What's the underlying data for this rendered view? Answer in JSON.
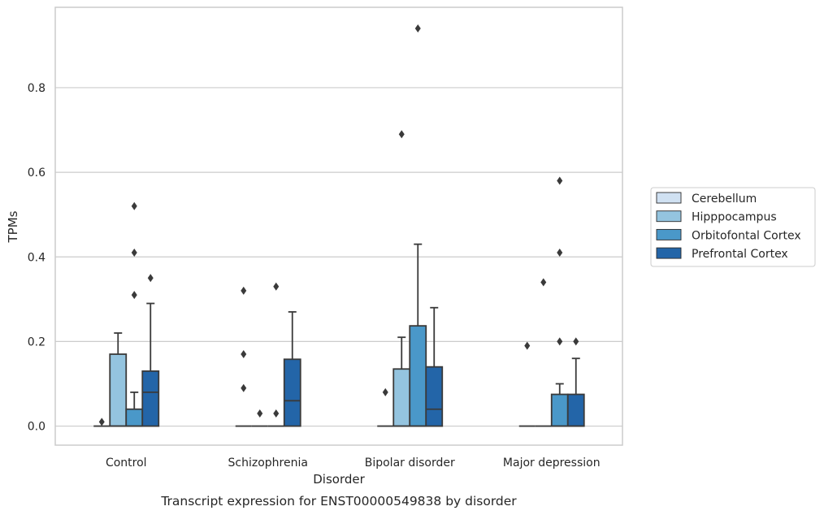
{
  "chart_data": {
    "type": "box",
    "caption": "Transcript expression for ENST00000549838 by disorder",
    "xlabel": "Disorder",
    "ylabel": "TPMs",
    "ylim": [
      -0.045,
      0.99
    ],
    "yticks": [
      0.0,
      0.2,
      0.4,
      0.6,
      0.8
    ],
    "ytick_labels": [
      "0.0",
      "0.2",
      "0.4",
      "0.6",
      "0.8"
    ],
    "grid": "horizontal",
    "legend_position": "right",
    "categories": [
      "Control",
      "Schizophrenia",
      "Bipolar disorder",
      "Major depression"
    ],
    "series": [
      {
        "name": "Cerebellum",
        "color": "#d0e1f2",
        "boxes": [
          {
            "q1": 0,
            "median": 0,
            "q3": 0,
            "whislo": 0,
            "whishi": 0,
            "fliers": [
              0.01
            ]
          },
          {
            "q1": 0,
            "median": 0,
            "q3": 0,
            "whislo": 0,
            "whishi": 0,
            "fliers": [
              0.32,
              0.17,
              0.09
            ]
          },
          {
            "q1": 0,
            "median": 0,
            "q3": 0,
            "whislo": 0,
            "whishi": 0,
            "fliers": [
              0.08
            ]
          },
          {
            "q1": 0,
            "median": 0,
            "q3": 0,
            "whislo": 0,
            "whishi": 0,
            "fliers": [
              0.19
            ]
          }
        ]
      },
      {
        "name": "Hipppocampus",
        "color": "#94c4df",
        "boxes": [
          {
            "q1": 0,
            "median": 0,
            "q3": 0.17,
            "whislo": 0,
            "whishi": 0.22,
            "fliers": []
          },
          {
            "q1": 0,
            "median": 0,
            "q3": 0,
            "whislo": 0,
            "whishi": 0,
            "fliers": [
              0.03
            ]
          },
          {
            "q1": 0,
            "median": 0,
            "q3": 0.135,
            "whislo": 0,
            "whishi": 0.21,
            "fliers": [
              0.69
            ]
          },
          {
            "q1": 0,
            "median": 0,
            "q3": 0,
            "whislo": 0,
            "whishi": 0,
            "fliers": [
              0.34
            ]
          }
        ]
      },
      {
        "name": "Orbitofontal Cortex",
        "color": "#4a98c9",
        "boxes": [
          {
            "q1": 0,
            "median": 0,
            "q3": 0.04,
            "whislo": 0,
            "whishi": 0.08,
            "fliers": [
              0.52,
              0.41,
              0.31
            ]
          },
          {
            "q1": 0,
            "median": 0,
            "q3": 0,
            "whislo": 0,
            "whishi": 0,
            "fliers": [
              0.33,
              0.03
            ]
          },
          {
            "q1": 0,
            "median": 0,
            "q3": 0.237,
            "whislo": 0,
            "whishi": 0.43,
            "fliers": [
              0.94
            ]
          },
          {
            "q1": 0,
            "median": 0,
            "q3": 0.075,
            "whislo": 0,
            "whishi": 0.1,
            "fliers": [
              0.58,
              0.41,
              0.2
            ]
          }
        ]
      },
      {
        "name": "Prefrontal Cortex",
        "color": "#2365a8",
        "boxes": [
          {
            "q1": 0,
            "median": 0.08,
            "q3": 0.13,
            "whislo": 0,
            "whishi": 0.29,
            "fliers": [
              0.35
            ]
          },
          {
            "q1": 0,
            "median": 0.06,
            "q3": 0.158,
            "whislo": 0,
            "whishi": 0.27,
            "fliers": []
          },
          {
            "q1": 0,
            "median": 0.04,
            "q3": 0.14,
            "whislo": 0,
            "whishi": 0.28,
            "fliers": []
          },
          {
            "q1": 0,
            "median": 0,
            "q3": 0.075,
            "whislo": 0,
            "whishi": 0.16,
            "fliers": [
              0.2
            ]
          }
        ]
      }
    ],
    "colors": {
      "grid": "#cccccc",
      "frame": "#cccccc",
      "edge": "#3a3a3a",
      "legend_border": "#cccccc"
    }
  }
}
